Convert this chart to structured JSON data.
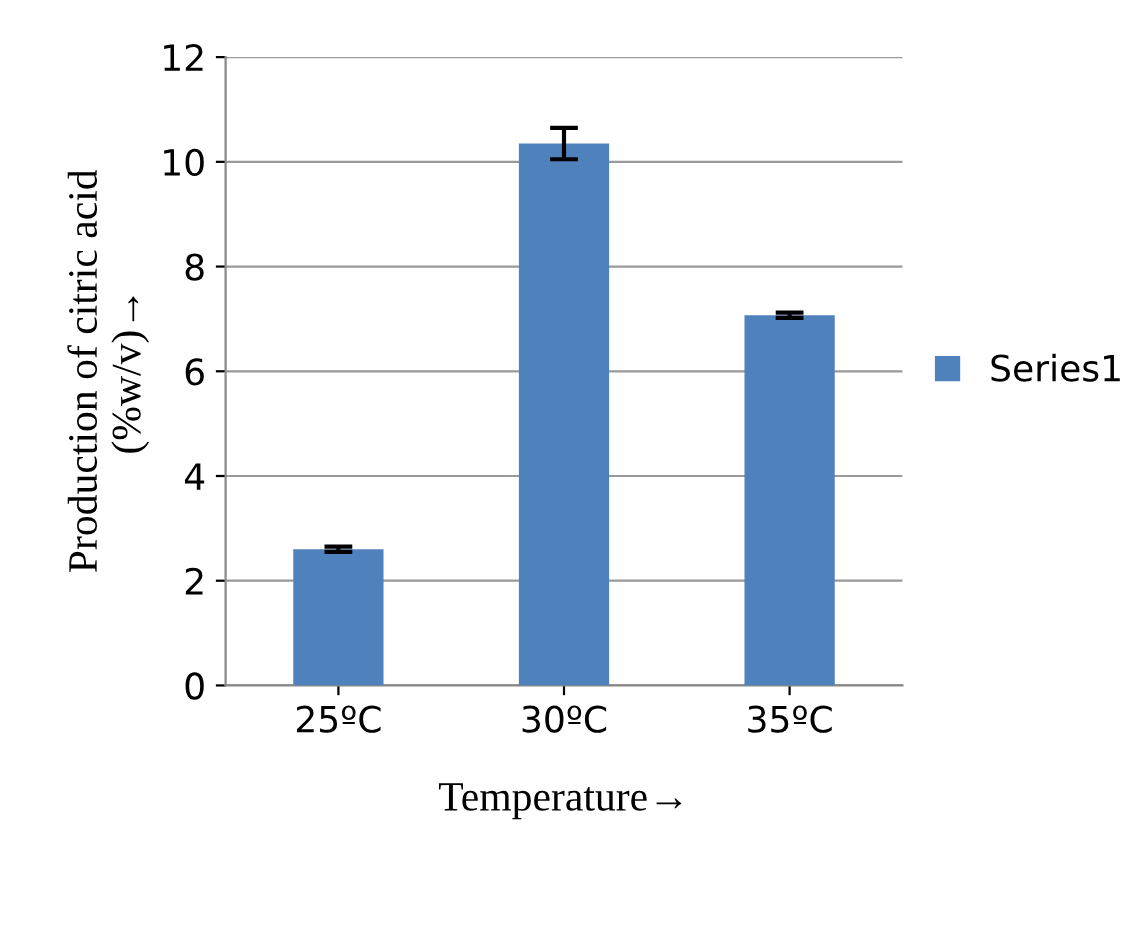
{
  "chart_data": {
    "type": "bar",
    "xlabel": "Temperature→",
    "ylabel": "Production of citric acid\n(%w/v)→",
    "categories": [
      "25ºC",
      "30ºC",
      "35ºC"
    ],
    "series": [
      {
        "name": "Series1",
        "color": "#4f81bd",
        "values": [
          2.6,
          10.35,
          7.07
        ],
        "errors": [
          0.05,
          0.3,
          0.05
        ]
      }
    ],
    "ylim": [
      0,
      12
    ],
    "yticks": [
      0,
      2,
      4,
      6,
      8,
      10,
      12
    ],
    "grid": "y",
    "legend": "right"
  }
}
